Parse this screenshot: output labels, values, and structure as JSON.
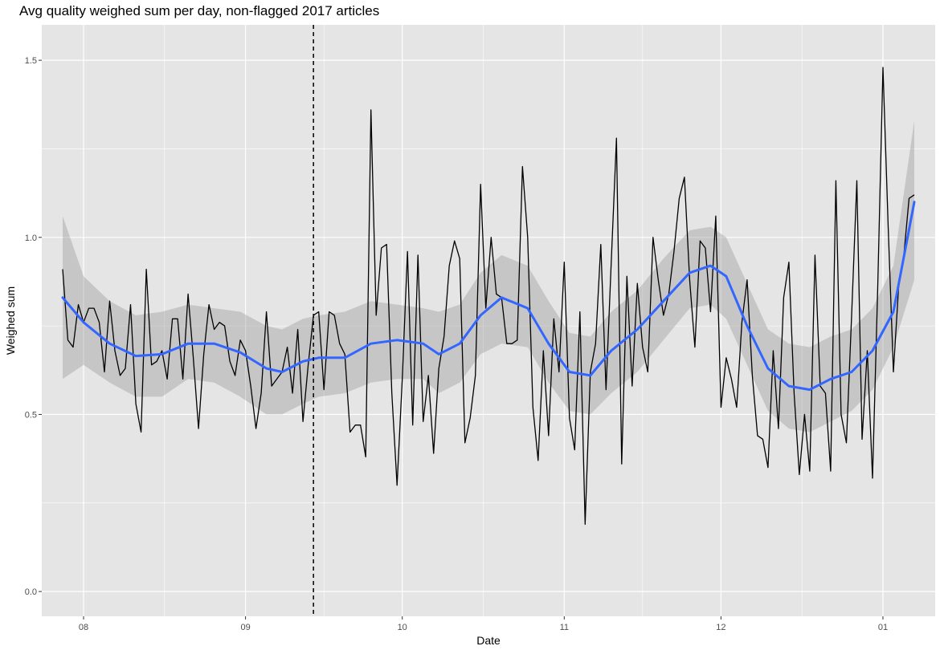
{
  "chart_data": {
    "type": "line",
    "title": "Avg quality weighed sum per day, non-flagged 2017 articles",
    "xlabel": "Date",
    "ylabel": "Weighed sum",
    "x_axis": {
      "type": "date",
      "range": [
        "2017-07-24",
        "2018-01-11"
      ],
      "ticks": [
        {
          "date": "2017-08-01",
          "label": "08"
        },
        {
          "date": "2017-09-01",
          "label": "09"
        },
        {
          "date": "2017-10-01",
          "label": "10"
        },
        {
          "date": "2017-11-01",
          "label": "11"
        },
        {
          "date": "2017-12-01",
          "label": "12"
        },
        {
          "date": "2018-01-01",
          "label": "01"
        }
      ]
    },
    "y_axis": {
      "range": [
        -0.07,
        1.6
      ],
      "ticks": [
        0.0,
        0.5,
        1.0,
        1.5
      ],
      "tick_labels": [
        "0.0",
        "0.5",
        "1.0",
        "1.5"
      ]
    },
    "grid": true,
    "background_color": "#e5e5e5",
    "grid_color": "#ffffff",
    "reference_line": {
      "date": "2017-09-14",
      "style": "dashed",
      "color": "#000000"
    },
    "series": [
      {
        "role": "daily-values",
        "color": "#000000",
        "points": [
          [
            "2017-07-28",
            0.91
          ],
          [
            "2017-07-29",
            0.71
          ],
          [
            "2017-07-30",
            0.69
          ],
          [
            "2017-07-31",
            0.81
          ],
          [
            "2017-08-01",
            0.76
          ],
          [
            "2017-08-02",
            0.8
          ],
          [
            "2017-08-03",
            0.8
          ],
          [
            "2017-08-04",
            0.76
          ],
          [
            "2017-08-05",
            0.62
          ],
          [
            "2017-08-06",
            0.82
          ],
          [
            "2017-08-07",
            0.68
          ],
          [
            "2017-08-08",
            0.61
          ],
          [
            "2017-08-09",
            0.63
          ],
          [
            "2017-08-10",
            0.81
          ],
          [
            "2017-08-11",
            0.53
          ],
          [
            "2017-08-12",
            0.45
          ],
          [
            "2017-08-13",
            0.91
          ],
          [
            "2017-08-14",
            0.64
          ],
          [
            "2017-08-15",
            0.65
          ],
          [
            "2017-08-16",
            0.68
          ],
          [
            "2017-08-17",
            0.6
          ],
          [
            "2017-08-18",
            0.77
          ],
          [
            "2017-08-19",
            0.77
          ],
          [
            "2017-08-20",
            0.6
          ],
          [
            "2017-08-21",
            0.84
          ],
          [
            "2017-08-22",
            0.66
          ],
          [
            "2017-08-23",
            0.46
          ],
          [
            "2017-08-24",
            0.67
          ],
          [
            "2017-08-25",
            0.81
          ],
          [
            "2017-08-26",
            0.74
          ],
          [
            "2017-08-27",
            0.76
          ],
          [
            "2017-08-28",
            0.75
          ],
          [
            "2017-08-29",
            0.65
          ],
          [
            "2017-08-30",
            0.61
          ],
          [
            "2017-08-31",
            0.71
          ],
          [
            "2017-09-01",
            0.68
          ],
          [
            "2017-09-02",
            0.58
          ],
          [
            "2017-09-03",
            0.46
          ],
          [
            "2017-09-04",
            0.56
          ],
          [
            "2017-09-05",
            0.79
          ],
          [
            "2017-09-06",
            0.58
          ],
          [
            "2017-09-07",
            0.6
          ],
          [
            "2017-09-08",
            0.62
          ],
          [
            "2017-09-09",
            0.69
          ],
          [
            "2017-09-10",
            0.56
          ],
          [
            "2017-09-11",
            0.74
          ],
          [
            "2017-09-12",
            0.48
          ],
          [
            "2017-09-13",
            0.64
          ],
          [
            "2017-09-14",
            0.78
          ],
          [
            "2017-09-15",
            0.79
          ],
          [
            "2017-09-16",
            0.57
          ],
          [
            "2017-09-17",
            0.79
          ],
          [
            "2017-09-18",
            0.78
          ],
          [
            "2017-09-19",
            0.7
          ],
          [
            "2017-09-20",
            0.67
          ],
          [
            "2017-09-21",
            0.45
          ],
          [
            "2017-09-22",
            0.47
          ],
          [
            "2017-09-23",
            0.47
          ],
          [
            "2017-09-24",
            0.38
          ],
          [
            "2017-09-25",
            1.36
          ],
          [
            "2017-09-26",
            0.78
          ],
          [
            "2017-09-27",
            0.97
          ],
          [
            "2017-09-28",
            0.98
          ],
          [
            "2017-09-29",
            0.56
          ],
          [
            "2017-09-30",
            0.3
          ],
          [
            "2017-10-01",
            0.6
          ],
          [
            "2017-10-02",
            0.96
          ],
          [
            "2017-10-03",
            0.47
          ],
          [
            "2017-10-04",
            0.95
          ],
          [
            "2017-10-05",
            0.48
          ],
          [
            "2017-10-06",
            0.61
          ],
          [
            "2017-10-07",
            0.39
          ],
          [
            "2017-10-08",
            0.63
          ],
          [
            "2017-10-09",
            0.72
          ],
          [
            "2017-10-10",
            0.92
          ],
          [
            "2017-10-11",
            0.99
          ],
          [
            "2017-10-12",
            0.94
          ],
          [
            "2017-10-13",
            0.42
          ],
          [
            "2017-10-14",
            0.49
          ],
          [
            "2017-10-15",
            0.61
          ],
          [
            "2017-10-16",
            1.15
          ],
          [
            "2017-10-17",
            0.8
          ],
          [
            "2017-10-18",
            1.0
          ],
          [
            "2017-10-19",
            0.84
          ],
          [
            "2017-10-20",
            0.83
          ],
          [
            "2017-10-21",
            0.7
          ],
          [
            "2017-10-22",
            0.7
          ],
          [
            "2017-10-23",
            0.71
          ],
          [
            "2017-10-24",
            1.2
          ],
          [
            "2017-10-25",
            1.0
          ],
          [
            "2017-10-26",
            0.52
          ],
          [
            "2017-10-27",
            0.37
          ],
          [
            "2017-10-28",
            0.68
          ],
          [
            "2017-10-29",
            0.44
          ],
          [
            "2017-10-30",
            0.77
          ],
          [
            "2017-10-31",
            0.62
          ],
          [
            "2017-11-01",
            0.93
          ],
          [
            "2017-11-02",
            0.49
          ],
          [
            "2017-11-03",
            0.4
          ],
          [
            "2017-11-04",
            0.79
          ],
          [
            "2017-11-05",
            0.19
          ],
          [
            "2017-11-06",
            0.62
          ],
          [
            "2017-11-07",
            0.7
          ],
          [
            "2017-11-08",
            0.98
          ],
          [
            "2017-11-09",
            0.57
          ],
          [
            "2017-11-10",
            0.93
          ],
          [
            "2017-11-11",
            1.28
          ],
          [
            "2017-11-12",
            0.36
          ],
          [
            "2017-11-13",
            0.89
          ],
          [
            "2017-11-14",
            0.58
          ],
          [
            "2017-11-15",
            0.87
          ],
          [
            "2017-11-16",
            0.69
          ],
          [
            "2017-11-17",
            0.62
          ],
          [
            "2017-11-18",
            1.0
          ],
          [
            "2017-11-19",
            0.88
          ],
          [
            "2017-11-20",
            0.78
          ],
          [
            "2017-11-21",
            0.84
          ],
          [
            "2017-11-22",
            0.96
          ],
          [
            "2017-11-23",
            1.11
          ],
          [
            "2017-11-24",
            1.17
          ],
          [
            "2017-11-25",
            0.88
          ],
          [
            "2017-11-26",
            0.69
          ],
          [
            "2017-11-27",
            0.99
          ],
          [
            "2017-11-28",
            0.97
          ],
          [
            "2017-11-29",
            0.79
          ],
          [
            "2017-11-30",
            1.06
          ],
          [
            "2017-12-01",
            0.52
          ],
          [
            "2017-12-02",
            0.66
          ],
          [
            "2017-12-03",
            0.6
          ],
          [
            "2017-12-04",
            0.52
          ],
          [
            "2017-12-05",
            0.76
          ],
          [
            "2017-12-06",
            0.88
          ],
          [
            "2017-12-07",
            0.61
          ],
          [
            "2017-12-08",
            0.44
          ],
          [
            "2017-12-09",
            0.43
          ],
          [
            "2017-12-10",
            0.35
          ],
          [
            "2017-12-11",
            0.68
          ],
          [
            "2017-12-12",
            0.46
          ],
          [
            "2017-12-13",
            0.83
          ],
          [
            "2017-12-14",
            0.93
          ],
          [
            "2017-12-15",
            0.56
          ],
          [
            "2017-12-16",
            0.33
          ],
          [
            "2017-12-17",
            0.5
          ],
          [
            "2017-12-18",
            0.34
          ],
          [
            "2017-12-19",
            0.95
          ],
          [
            "2017-12-20",
            0.58
          ],
          [
            "2017-12-21",
            0.56
          ],
          [
            "2017-12-22",
            0.34
          ],
          [
            "2017-12-23",
            1.16
          ],
          [
            "2017-12-24",
            0.5
          ],
          [
            "2017-12-25",
            0.42
          ],
          [
            "2017-12-26",
            0.78
          ],
          [
            "2017-12-27",
            1.16
          ],
          [
            "2017-12-28",
            0.43
          ],
          [
            "2017-12-29",
            0.68
          ],
          [
            "2017-12-30",
            0.32
          ],
          [
            "2017-12-31",
            0.86
          ],
          [
            "2018-01-01",
            1.48
          ],
          [
            "2018-01-02",
            1.03
          ],
          [
            "2018-01-03",
            0.62
          ],
          [
            "2018-01-04",
            0.86
          ],
          [
            "2018-01-05",
            0.95
          ],
          [
            "2018-01-06",
            1.11
          ],
          [
            "2018-01-07",
            1.12
          ]
        ]
      },
      {
        "role": "smoothed-trend",
        "color": "#3366ff",
        "points": [
          [
            "2017-07-28",
            0.83
          ],
          [
            "2017-08-01",
            0.76
          ],
          [
            "2017-08-06",
            0.7
          ],
          [
            "2017-08-11",
            0.665
          ],
          [
            "2017-08-16",
            0.67
          ],
          [
            "2017-08-21",
            0.7
          ],
          [
            "2017-08-26",
            0.7
          ],
          [
            "2017-08-31",
            0.675
          ],
          [
            "2017-09-05",
            0.63
          ],
          [
            "2017-09-08",
            0.62
          ],
          [
            "2017-09-12",
            0.65
          ],
          [
            "2017-09-15",
            0.66
          ],
          [
            "2017-09-20",
            0.66
          ],
          [
            "2017-09-25",
            0.7
          ],
          [
            "2017-09-30",
            0.71
          ],
          [
            "2017-10-05",
            0.7
          ],
          [
            "2017-10-08",
            0.67
          ],
          [
            "2017-10-12",
            0.7
          ],
          [
            "2017-10-16",
            0.78
          ],
          [
            "2017-10-20",
            0.83
          ],
          [
            "2017-10-25",
            0.8
          ],
          [
            "2017-10-29",
            0.7
          ],
          [
            "2017-11-02",
            0.62
          ],
          [
            "2017-11-06",
            0.61
          ],
          [
            "2017-11-10",
            0.68
          ],
          [
            "2017-11-15",
            0.74
          ],
          [
            "2017-11-20",
            0.82
          ],
          [
            "2017-11-25",
            0.9
          ],
          [
            "2017-11-29",
            0.92
          ],
          [
            "2017-12-02",
            0.89
          ],
          [
            "2017-12-06",
            0.75
          ],
          [
            "2017-12-10",
            0.63
          ],
          [
            "2017-12-14",
            0.58
          ],
          [
            "2017-12-18",
            0.57
          ],
          [
            "2017-12-22",
            0.6
          ],
          [
            "2017-12-26",
            0.62
          ],
          [
            "2017-12-30",
            0.68
          ],
          [
            "2018-01-03",
            0.79
          ],
          [
            "2018-01-07",
            1.1
          ]
        ],
        "band": [
          [
            "2017-07-28",
            0.6,
            1.06
          ],
          [
            "2017-08-01",
            0.64,
            0.89
          ],
          [
            "2017-08-06",
            0.59,
            0.82
          ],
          [
            "2017-08-11",
            0.55,
            0.78
          ],
          [
            "2017-08-16",
            0.55,
            0.79
          ],
          [
            "2017-08-21",
            0.6,
            0.81
          ],
          [
            "2017-08-26",
            0.59,
            0.8
          ],
          [
            "2017-08-31",
            0.55,
            0.79
          ],
          [
            "2017-09-05",
            0.5,
            0.75
          ],
          [
            "2017-09-08",
            0.5,
            0.74
          ],
          [
            "2017-09-12",
            0.53,
            0.77
          ],
          [
            "2017-09-15",
            0.55,
            0.78
          ],
          [
            "2017-09-20",
            0.56,
            0.79
          ],
          [
            "2017-09-25",
            0.59,
            0.82
          ],
          [
            "2017-09-30",
            0.6,
            0.81
          ],
          [
            "2017-10-05",
            0.6,
            0.8
          ],
          [
            "2017-10-08",
            0.56,
            0.79
          ],
          [
            "2017-10-12",
            0.59,
            0.81
          ],
          [
            "2017-10-16",
            0.67,
            0.9
          ],
          [
            "2017-10-20",
            0.7,
            0.95
          ],
          [
            "2017-10-25",
            0.69,
            0.92
          ],
          [
            "2017-10-29",
            0.59,
            0.82
          ],
          [
            "2017-11-02",
            0.51,
            0.73
          ],
          [
            "2017-11-06",
            0.5,
            0.72
          ],
          [
            "2017-11-10",
            0.56,
            0.79
          ],
          [
            "2017-11-15",
            0.62,
            0.85
          ],
          [
            "2017-11-20",
            0.71,
            0.94
          ],
          [
            "2017-11-25",
            0.8,
            1.02
          ],
          [
            "2017-11-29",
            0.81,
            1.03
          ],
          [
            "2017-12-02",
            0.77,
            1.0
          ],
          [
            "2017-12-06",
            0.64,
            0.87
          ],
          [
            "2017-12-10",
            0.51,
            0.74
          ],
          [
            "2017-12-14",
            0.46,
            0.7
          ],
          [
            "2017-12-18",
            0.45,
            0.69
          ],
          [
            "2017-12-22",
            0.48,
            0.72
          ],
          [
            "2017-12-26",
            0.51,
            0.74
          ],
          [
            "2017-12-30",
            0.57,
            0.8
          ],
          [
            "2018-01-03",
            0.69,
            0.92
          ],
          [
            "2018-01-07",
            0.88,
            1.33
          ]
        ]
      }
    ]
  }
}
